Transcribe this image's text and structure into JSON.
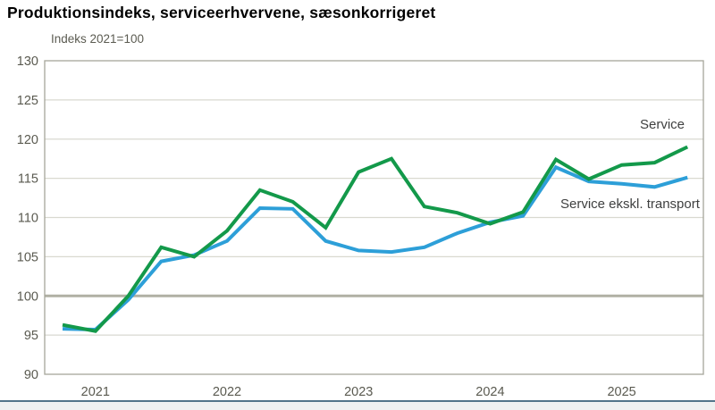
{
  "title": "Produktionsindeks, serviceerhvervene, sæsonkorrigeret",
  "subtitle": "Indeks 2021=100",
  "chart_data": {
    "type": "line",
    "title": "Produktionsindeks, serviceerhvervene, sæsonkorrigeret",
    "ylabel": "Indeks 2021=100",
    "x": [
      "2020Q4",
      "2021Q1",
      "2021Q2",
      "2021Q3",
      "2021Q4",
      "2022Q1",
      "2022Q2",
      "2022Q3",
      "2022Q4",
      "2023Q1",
      "2023Q2",
      "2023Q3",
      "2023Q4",
      "2024Q1",
      "2024Q2",
      "2024Q3",
      "2024Q4",
      "2025Q1",
      "2025Q2",
      "2025Q3"
    ],
    "series": [
      {
        "name": "Service",
        "color": "#13994a",
        "values": [
          96.3,
          95.5,
          100.0,
          106.2,
          105.0,
          108.3,
          113.5,
          112.0,
          108.7,
          115.8,
          117.5,
          111.4,
          110.6,
          109.2,
          110.7,
          117.4,
          114.9,
          116.7,
          117.0,
          119.0
        ]
      },
      {
        "name": "Service ekskl. transport",
        "color": "#2d9fd8",
        "values": [
          95.8,
          95.7,
          99.5,
          104.4,
          105.2,
          107.0,
          111.2,
          111.1,
          107.0,
          105.8,
          105.6,
          106.2,
          108.0,
          109.4,
          110.2,
          116.4,
          114.6,
          114.3,
          113.9,
          115.1
        ]
      }
    ],
    "ylim": [
      90,
      130
    ],
    "yticks": [
      130,
      125,
      120,
      115,
      110,
      105,
      100,
      95,
      90
    ],
    "xticks": [
      "2021",
      "2022",
      "2023",
      "2024",
      "2025"
    ],
    "xtick_indices": [
      1,
      5,
      9,
      13,
      17
    ],
    "baseline_value": 100,
    "grid": "horizontal",
    "legend_position": "inline-right-of-lines",
    "colors": {
      "gridline": "#d9d9d0",
      "border": "#a6a69a",
      "baseline": "#b0b0a4",
      "tick_text": "#5a5a50",
      "footer_rule": "#53748a"
    }
  }
}
